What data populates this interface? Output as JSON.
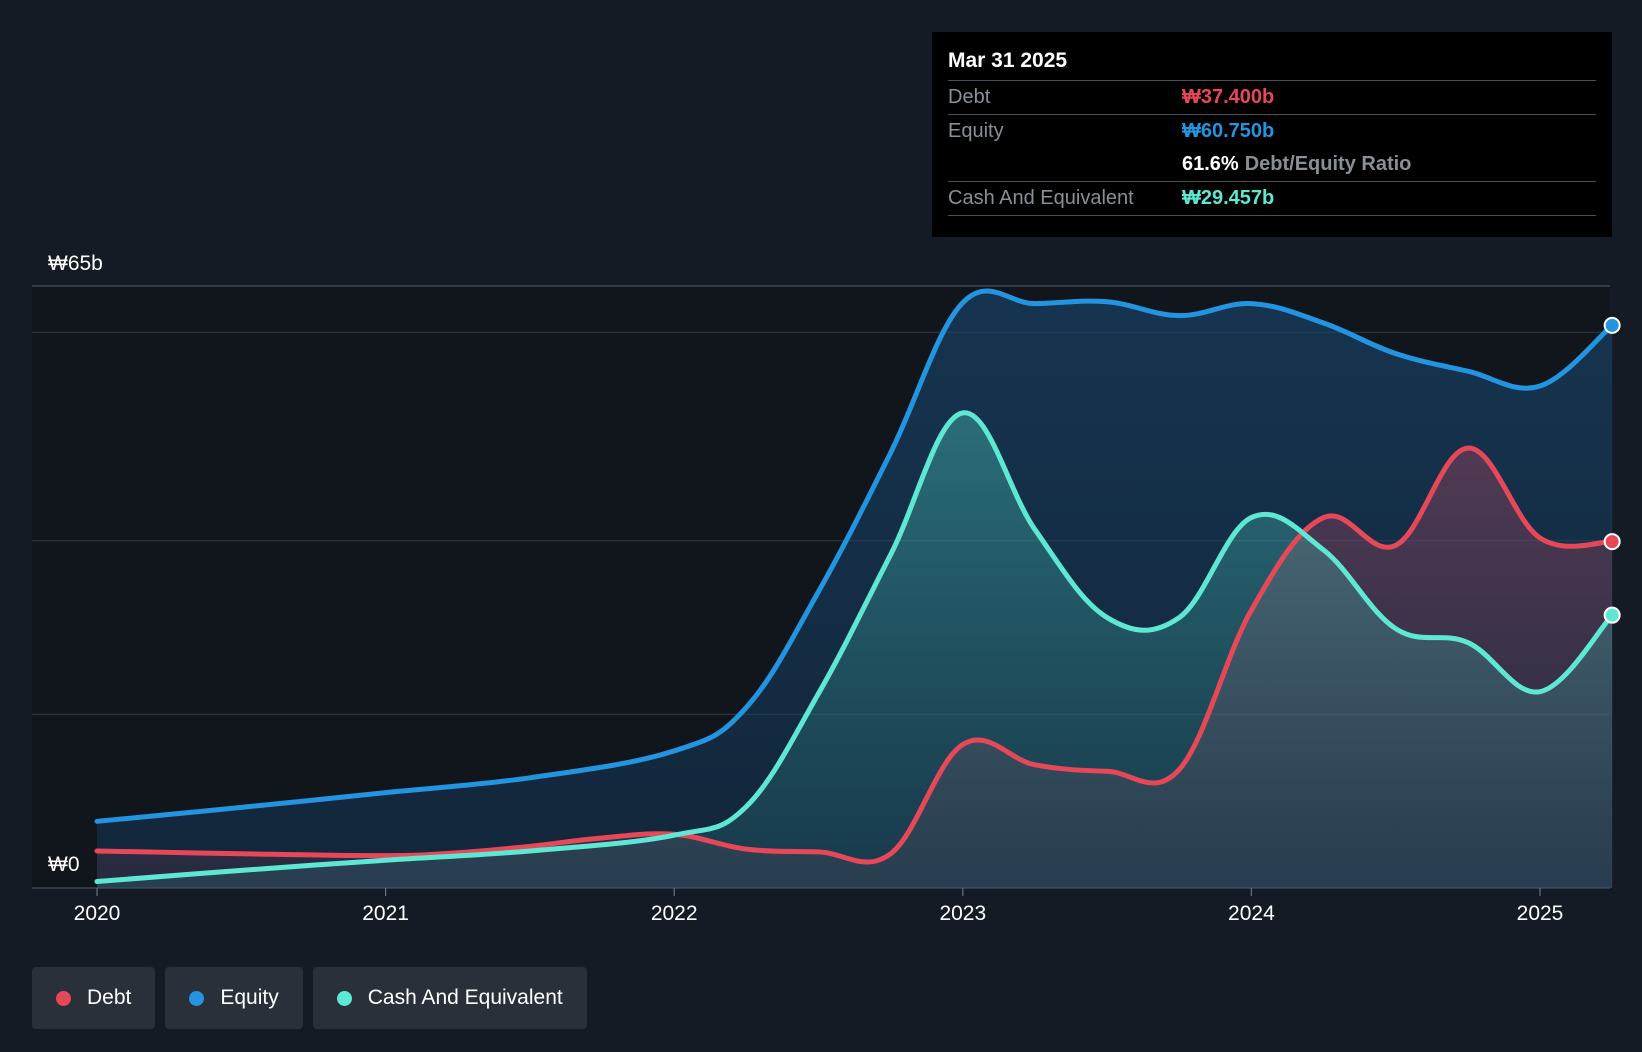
{
  "chart_data": {
    "type": "area",
    "title": "",
    "xlabel": "",
    "ylabel": "",
    "ylim": [
      0,
      65
    ],
    "y_axis_labels": [
      "₩65b",
      "₩0"
    ],
    "x_ticks": [
      2020,
      2021,
      2022,
      2023,
      2024,
      2025
    ],
    "x_tick_labels": [
      "2020",
      "2021",
      "2022",
      "2023",
      "2024",
      "2025"
    ],
    "x_range": [
      2019.8,
      2025.25
    ],
    "series": [
      {
        "name": "Equity",
        "color": "#2394df",
        "points": [
          [
            2020.0,
            7.2
          ],
          [
            2020.5,
            8.7
          ],
          [
            2021.0,
            10.3
          ],
          [
            2021.5,
            11.9
          ],
          [
            2022.0,
            14.8
          ],
          [
            2022.25,
            19.5
          ],
          [
            2022.5,
            32
          ],
          [
            2022.75,
            47
          ],
          [
            2023.0,
            63.2
          ],
          [
            2023.25,
            63.1
          ],
          [
            2023.5,
            63.3
          ],
          [
            2023.75,
            61.8
          ],
          [
            2024.0,
            63.1
          ],
          [
            2024.25,
            61.0
          ],
          [
            2024.5,
            57.7
          ],
          [
            2024.75,
            55.8
          ],
          [
            2025.0,
            54.2
          ],
          [
            2025.25,
            60.75
          ]
        ]
      },
      {
        "name": "Debt",
        "color": "#e64858",
        "points": [
          [
            2020.0,
            4.0
          ],
          [
            2020.5,
            3.7
          ],
          [
            2021.0,
            3.5
          ],
          [
            2021.25,
            3.8
          ],
          [
            2021.5,
            4.5
          ],
          [
            2021.75,
            5.4
          ],
          [
            2022.0,
            5.8
          ],
          [
            2022.25,
            4.2
          ],
          [
            2022.5,
            3.9
          ],
          [
            2022.75,
            3.7
          ],
          [
            2023.0,
            15.5
          ],
          [
            2023.25,
            13.3
          ],
          [
            2023.5,
            12.6
          ],
          [
            2023.75,
            12.8
          ],
          [
            2024.0,
            30.0
          ],
          [
            2024.25,
            40.0
          ],
          [
            2024.5,
            37.0
          ],
          [
            2024.75,
            47.5
          ],
          [
            2025.0,
            37.8
          ],
          [
            2025.25,
            37.4
          ]
        ]
      },
      {
        "name": "Cash And Equivalent",
        "color": "#5ee8d3",
        "points": [
          [
            2020.0,
            0.7
          ],
          [
            2020.5,
            1.9
          ],
          [
            2021.0,
            3.0
          ],
          [
            2021.5,
            4.0
          ],
          [
            2022.0,
            5.7
          ],
          [
            2022.25,
            8.8
          ],
          [
            2022.5,
            21
          ],
          [
            2022.75,
            36
          ],
          [
            2023.0,
            51.3
          ],
          [
            2023.25,
            38.7
          ],
          [
            2023.5,
            29.2
          ],
          [
            2023.75,
            29.2
          ],
          [
            2024.0,
            40.0
          ],
          [
            2024.25,
            36.5
          ],
          [
            2024.5,
            28.0
          ],
          [
            2024.75,
            26.5
          ],
          [
            2025.0,
            21.2
          ],
          [
            2025.25,
            29.457
          ]
        ]
      }
    ],
    "legend": [
      "Debt",
      "Equity",
      "Cash And Equivalent"
    ],
    "legend_position": "bottom-left",
    "grid": true
  },
  "tooltip": {
    "date": "Mar 31 2025",
    "debt_label": "Debt",
    "debt_value": "₩37.400b",
    "equity_label": "Equity",
    "equity_value": "₩60.750b",
    "ratio_value": "61.6%",
    "ratio_label": "Debt/Equity Ratio",
    "cash_label": "Cash And Equivalent",
    "cash_value": "₩29.457b"
  },
  "legend": {
    "debt": "Debt",
    "equity": "Equity",
    "cash": "Cash And Equivalent"
  },
  "colors": {
    "debt": "#e64858",
    "equity": "#2394df",
    "cash": "#5ee8d3",
    "background": "#151b24",
    "plot_background": "#11161d",
    "grid": "#2e353f"
  }
}
